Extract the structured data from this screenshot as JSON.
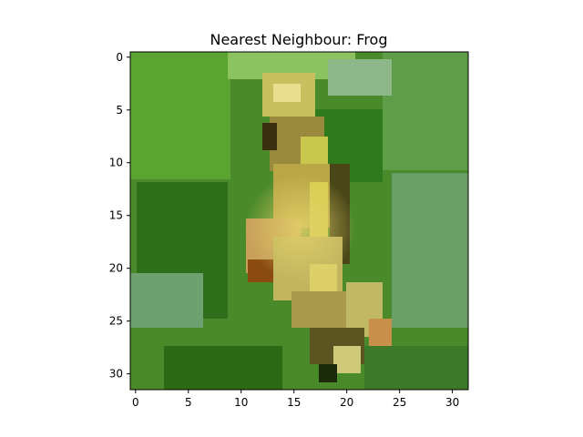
{
  "chart_data": {
    "type": "heatmap",
    "title": "Nearest Neighbour: Frog",
    "xlabel": "",
    "ylabel": "",
    "xlim": [
      -0.5,
      31.5
    ],
    "ylim": [
      31.5,
      -0.5
    ],
    "y_inverted": true,
    "grid": false,
    "x_ticks": [
      0,
      5,
      10,
      15,
      20,
      25,
      30
    ],
    "y_ticks": [
      0,
      5,
      10,
      15,
      20,
      25,
      30
    ],
    "image_size": [
      32,
      32
    ],
    "content": "32x32 pixel RGB image of a yellow-green frog on a leaf"
  }
}
